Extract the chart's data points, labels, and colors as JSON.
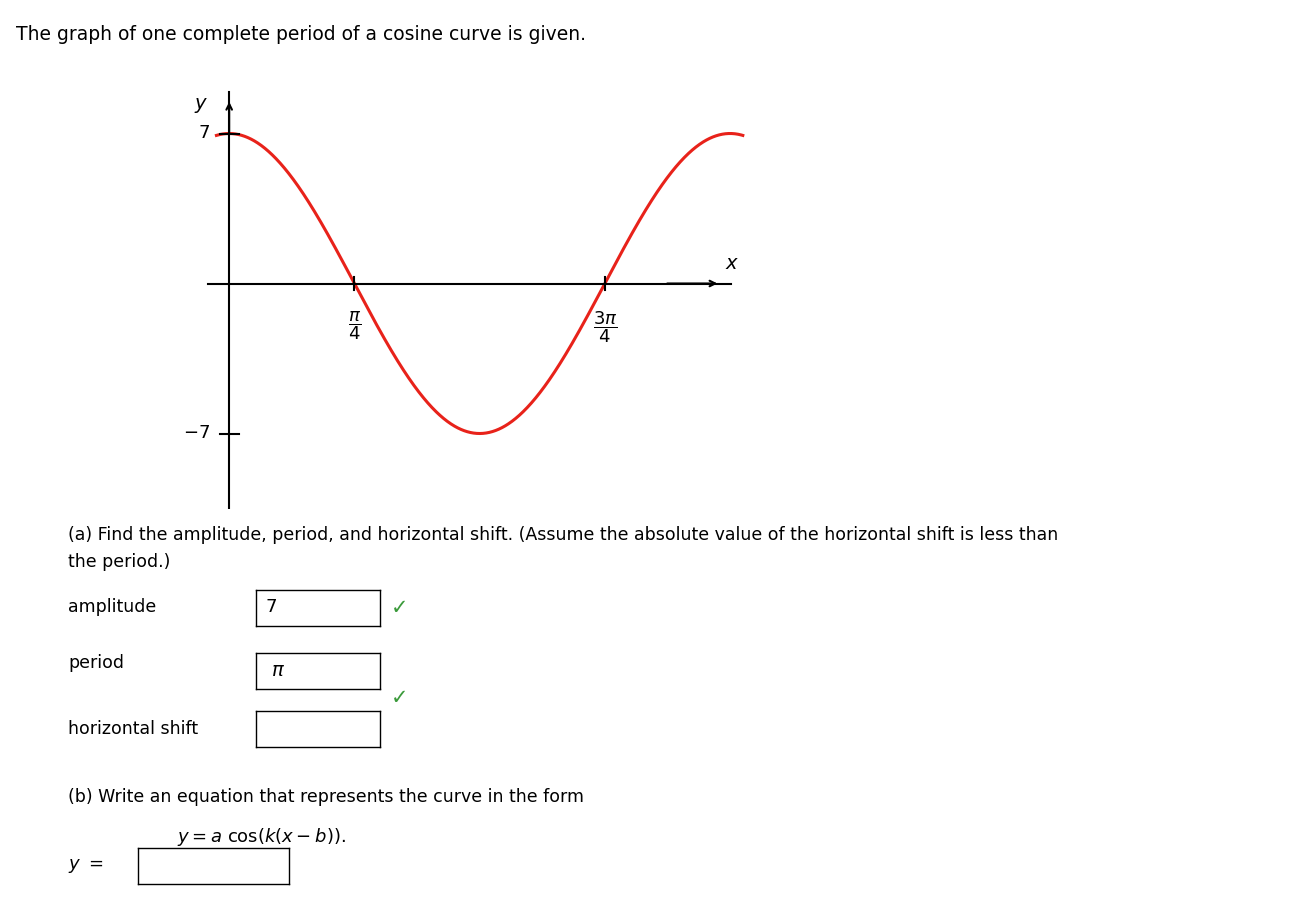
{
  "title_text": "The graph of one complete period of a cosine curve is given.",
  "curve_color": "#e8221a",
  "curve_linewidth": 2.2,
  "amplitude": 7,
  "background_color": "#ffffff",
  "section_a_label": "(a) Find the amplitude, period, and horizontal shift. (Assume the absolute value of the horizontal shift is less than\nthe period.)",
  "amplitude_label": "amplitude",
  "amplitude_value": "7",
  "period_label": "period",
  "period_value_latex": "\\pi",
  "hshift_label": "horizontal shift",
  "section_b_label": "(b) Write an equation that represents the curve in the form",
  "equation_label": "y = a\\,\\cos(k(x - b)).",
  "checkmark_color": "#3a9a3a",
  "text_color": "#000000"
}
